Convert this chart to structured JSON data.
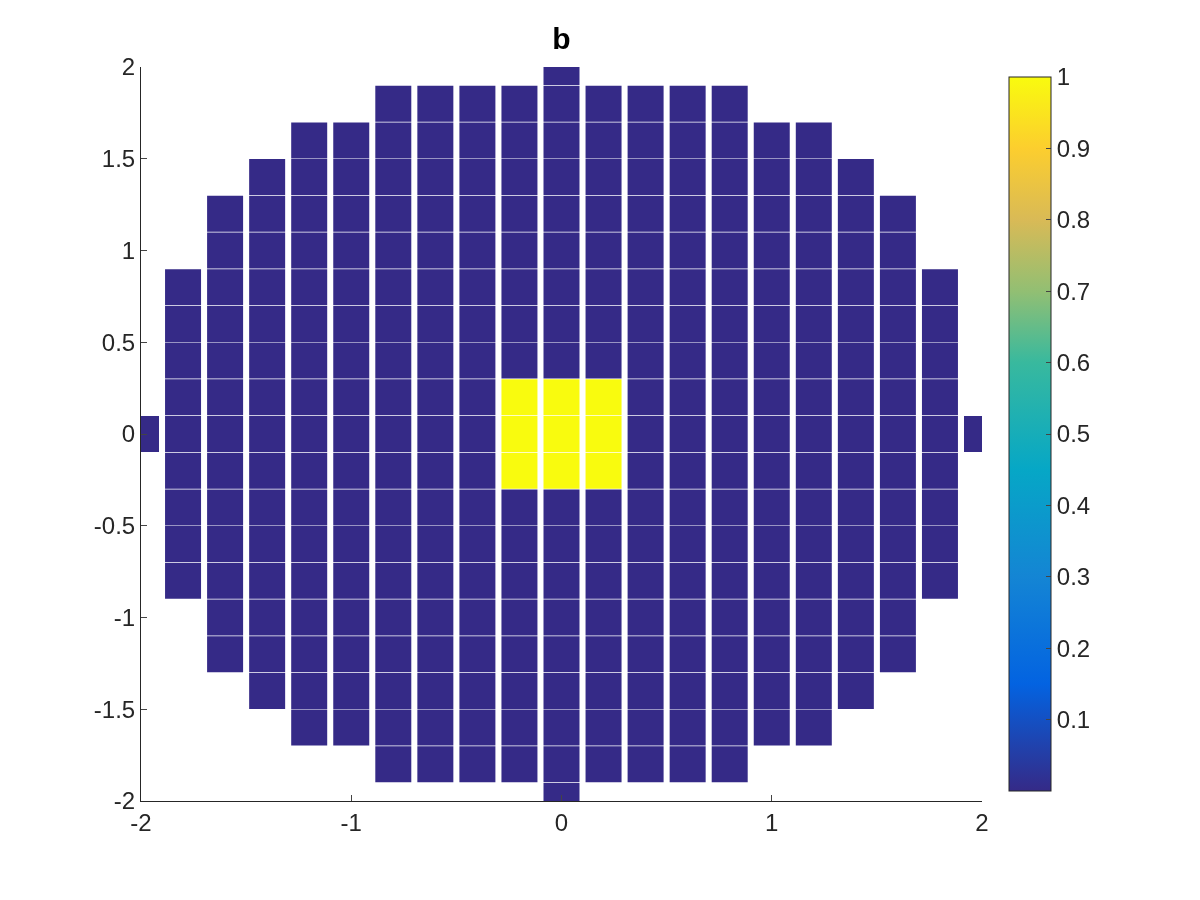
{
  "chart_data": {
    "type": "scatter",
    "title": "b",
    "marker": "square",
    "x": [
      0,
      -0.8,
      -0.6,
      -0.4,
      -0.2,
      0,
      0.2,
      0.4,
      0.6,
      0.8,
      -1.2,
      -1,
      -0.8,
      -0.6,
      -0.4,
      -0.2,
      0,
      0.2,
      0.4,
      0.6,
      0.8,
      1,
      1.2,
      -1.4,
      -1.2,
      -1,
      -0.8,
      -0.6,
      -0.4,
      -0.2,
      0,
      0.2,
      0.4,
      0.6,
      0.8,
      1,
      1.2,
      1.4,
      -1.6,
      -1.4,
      -1.2,
      -1,
      -0.8,
      -0.6,
      -0.4,
      -0.2,
      0,
      0.2,
      0.4,
      0.6,
      0.8,
      1,
      1.2,
      1.4,
      1.6,
      -1.6,
      -1.4,
      -1.2,
      -1,
      -0.8,
      -0.6,
      -0.4,
      -0.2,
      0,
      0.2,
      0.4,
      0.6,
      0.8,
      1,
      1.2,
      1.4,
      1.6,
      -1.8,
      -1.6,
      -1.4,
      -1.2,
      -1,
      -0.8,
      -0.6,
      -0.4,
      -0.2,
      0,
      0.2,
      0.4,
      0.6,
      0.8,
      1,
      1.2,
      1.4,
      1.6,
      1.8,
      -1.8,
      -1.6,
      -1.4,
      -1.2,
      -1,
      -0.8,
      -0.6,
      -0.4,
      -0.2,
      0,
      0.2,
      0.4,
      0.6,
      0.8,
      1,
      1.2,
      1.4,
      1.6,
      1.8,
      -1.8,
      -1.6,
      -1.4,
      -1.2,
      -1,
      -0.8,
      -0.6,
      -0.4,
      -0.2,
      0,
      0.2,
      0.4,
      0.6,
      0.8,
      1,
      1.2,
      1.4,
      1.6,
      1.8,
      -1.8,
      -1.6,
      -1.4,
      -1.2,
      -1,
      -0.8,
      -0.6,
      -0.4,
      -0.2,
      0,
      0.2,
      0.4,
      0.6,
      0.8,
      1,
      1.2,
      1.4,
      1.6,
      1.8,
      -2,
      -1.8,
      -1.6,
      -1.4,
      -1.2,
      -1,
      -0.8,
      -0.6,
      -0.4,
      -0.2,
      0,
      0.2,
      0.4,
      0.6,
      0.8,
      1,
      1.2,
      1.4,
      1.6,
      1.8,
      2,
      -1.8,
      -1.6,
      -1.4,
      -1.2,
      -1,
      -0.8,
      -0.6,
      -0.4,
      -0.2,
      0,
      0.2,
      0.4,
      0.6,
      0.8,
      1,
      1.2,
      1.4,
      1.6,
      1.8,
      -1.8,
      -1.6,
      -1.4,
      -1.2,
      -1,
      -0.8,
      -0.6,
      -0.4,
      -0.2,
      0,
      0.2,
      0.4,
      0.6,
      0.8,
      1,
      1.2,
      1.4,
      1.6,
      1.8,
      -1.8,
      -1.6,
      -1.4,
      -1.2,
      -1,
      -0.8,
      -0.6,
      -0.4,
      -0.2,
      0,
      0.2,
      0.4,
      0.6,
      0.8,
      1,
      1.2,
      1.4,
      1.6,
      1.8,
      -1.8,
      -1.6,
      -1.4,
      -1.2,
      -1,
      -0.8,
      -0.6,
      -0.4,
      -0.2,
      0,
      0.2,
      0.4,
      0.6,
      0.8,
      1,
      1.2,
      1.4,
      1.6,
      1.8,
      -1.6,
      -1.4,
      -1.2,
      -1,
      -0.8,
      -0.6,
      -0.4,
      -0.2,
      0,
      0.2,
      0.4,
      0.6,
      0.8,
      1,
      1.2,
      1.4,
      1.6,
      -1.6,
      -1.4,
      -1.2,
      -1,
      -0.8,
      -0.6,
      -0.4,
      -0.2,
      0,
      0.2,
      0.4,
      0.6,
      0.8,
      1,
      1.2,
      1.4,
      1.6,
      -1.4,
      -1.2,
      -1,
      -0.8,
      -0.6,
      -0.4,
      -0.2,
      0,
      0.2,
      0.4,
      0.6,
      0.8,
      1,
      1.2,
      1.4,
      -1.2,
      -1,
      -0.8,
      -0.6,
      -0.4,
      -0.2,
      0,
      0.2,
      0.4,
      0.6,
      0.8,
      1,
      1.2,
      -0.8,
      -0.6,
      -0.4,
      -0.2,
      0,
      0.2,
      0.4,
      0.6,
      0.8,
      0
    ],
    "values": [
      2,
      1.8,
      1.8,
      1.8,
      1.8,
      1.8,
      1.8,
      1.8,
      1.8,
      1.8,
      1.6,
      1.6,
      1.6,
      1.6,
      1.6,
      1.6,
      1.6,
      1.6,
      1.6,
      1.6,
      1.6,
      1.6,
      1.6,
      1.4,
      1.4,
      1.4,
      1.4,
      1.4,
      1.4,
      1.4,
      1.4,
      1.4,
      1.4,
      1.4,
      1.4,
      1.4,
      1.4,
      1.4,
      1.2,
      1.2,
      1.2,
      1.2,
      1.2,
      1.2,
      1.2,
      1.2,
      1.2,
      1.2,
      1.2,
      1.2,
      1.2,
      1.2,
      1.2,
      1.2,
      1.2,
      1,
      1,
      1,
      1,
      1,
      1,
      1,
      1,
      1,
      1,
      1,
      1,
      1,
      1,
      1,
      1,
      1,
      0.8,
      0.8,
      0.8,
      0.8,
      0.8,
      0.8,
      0.8,
      0.8,
      0.8,
      0.8,
      0.8,
      0.8,
      0.8,
      0.8,
      0.8,
      0.8,
      0.8,
      0.8,
      0.8,
      0.6,
      0.6,
      0.6,
      0.6,
      0.6,
      0.6,
      0.6,
      0.6,
      0.6,
      0.6,
      0.6,
      0.6,
      0.6,
      0.6,
      0.6,
      0.6,
      0.6,
      0.6,
      0.6,
      0.4,
      0.4,
      0.4,
      0.4,
      0.4,
      0.4,
      0.4,
      0.4,
      0.4,
      0.4,
      0.4,
      0.4,
      0.4,
      0.4,
      0.4,
      0.4,
      0.4,
      0.4,
      0.4,
      0.2,
      0.2,
      0.2,
      0.2,
      0.2,
      0.2,
      0.2,
      0.2,
      0.2,
      0.2,
      0.2,
      0.2,
      0.2,
      0.2,
      0.2,
      0.2,
      0.2,
      0.2,
      0.2,
      0,
      0,
      0,
      0,
      0,
      0,
      0,
      0,
      0,
      0,
      0,
      0,
      0,
      0,
      0,
      0,
      0,
      0,
      0,
      0,
      0,
      -0.2,
      -0.2,
      -0.2,
      -0.2,
      -0.2,
      -0.2,
      -0.2,
      -0.2,
      -0.2,
      -0.2,
      -0.2,
      -0.2,
      -0.2,
      -0.2,
      -0.2,
      -0.2,
      -0.2,
      -0.2,
      -0.2,
      -0.4,
      -0.4,
      -0.4,
      -0.4,
      -0.4,
      -0.4,
      -0.4,
      -0.4,
      -0.4,
      -0.4,
      -0.4,
      -0.4,
      -0.4,
      -0.4,
      -0.4,
      -0.4,
      -0.4,
      -0.4,
      -0.4,
      -0.6,
      -0.6,
      -0.6,
      -0.6,
      -0.6,
      -0.6,
      -0.6,
      -0.6,
      -0.6,
      -0.6,
      -0.6,
      -0.6,
      -0.6,
      -0.6,
      -0.6,
      -0.6,
      -0.6,
      -0.6,
      -0.6,
      -0.8,
      -0.8,
      -0.8,
      -0.8,
      -0.8,
      -0.8,
      -0.8,
      -0.8,
      -0.8,
      -0.8,
      -0.8,
      -0.8,
      -0.8,
      -0.8,
      -0.8,
      -0.8,
      -0.8,
      -0.8,
      -0.8,
      -1,
      -1,
      -1,
      -1,
      -1,
      -1,
      -1,
      -1,
      -1,
      -1,
      -1,
      -1,
      -1,
      -1,
      -1,
      -1,
      -1,
      -1.2,
      -1.2,
      -1.2,
      -1.2,
      -1.2,
      -1.2,
      -1.2,
      -1.2,
      -1.2,
      -1.2,
      -1.2,
      -1.2,
      -1.2,
      -1.2,
      -1.2,
      -1.2,
      -1.2,
      -1.4,
      -1.4,
      -1.4,
      -1.4,
      -1.4,
      -1.4,
      -1.4,
      -1.4,
      -1.4,
      -1.4,
      -1.4,
      -1.4,
      -1.4,
      -1.4,
      -1.4,
      -1.6,
      -1.6,
      -1.6,
      -1.6,
      -1.6,
      -1.6,
      -1.6,
      -1.6,
      -1.6,
      -1.6,
      -1.6,
      -1.6,
      -1.6,
      -1.8,
      -1.8,
      -1.8,
      -1.8,
      -1.8,
      -1.8,
      -1.8,
      -1.8,
      -1.8,
      -2
    ],
    "cvalues": [
      0,
      0,
      0,
      0,
      0,
      0,
      0,
      0,
      0,
      0,
      0,
      0,
      0,
      0,
      0,
      0,
      0,
      0,
      0,
      0,
      0,
      0,
      0,
      0,
      0,
      0,
      0,
      0,
      0,
      0,
      0,
      0,
      0,
      0,
      0,
      0,
      0,
      0,
      0,
      0,
      0,
      0,
      0,
      0,
      0,
      0,
      0,
      0,
      0,
      0,
      0,
      0,
      0,
      0,
      0,
      0,
      0,
      0,
      0,
      0,
      0,
      0,
      0,
      0,
      0,
      0,
      0,
      0,
      0,
      0,
      0,
      0,
      0,
      0,
      0,
      0,
      0,
      0,
      0,
      0,
      0,
      0,
      0,
      0,
      0,
      0,
      0,
      0,
      0,
      0,
      0,
      0,
      0,
      0,
      0,
      0,
      0,
      0,
      0,
      0,
      0,
      0,
      0,
      0,
      0,
      0,
      0,
      0,
      0,
      0,
      0,
      0,
      0,
      0,
      0,
      0,
      0,
      0,
      0,
      0,
      0,
      0,
      0,
      0,
      0,
      0,
      0,
      0,
      0,
      0,
      0,
      0,
      0,
      0,
      0,
      0,
      0,
      1,
      1,
      1,
      0,
      0,
      0,
      0,
      0,
      0,
      0,
      0,
      0,
      0,
      0,
      0,
      0,
      0,
      0,
      0,
      0,
      1,
      1,
      1,
      0,
      0,
      0,
      0,
      0,
      0,
      0,
      0,
      0,
      0,
      0,
      0,
      0,
      0,
      0,
      0,
      0,
      1,
      1,
      1,
      0,
      0,
      0,
      0,
      0,
      0,
      0,
      0,
      0,
      0,
      0,
      0,
      0,
      0,
      0,
      0,
      0,
      0,
      0,
      0,
      0,
      0,
      0,
      0,
      0,
      0,
      0,
      0,
      0,
      0,
      0,
      0,
      0,
      0,
      0,
      0,
      0,
      0,
      0,
      0,
      0,
      0,
      0,
      0,
      0,
      0,
      0,
      0,
      0,
      0,
      0,
      0,
      0,
      0,
      0,
      0,
      0,
      0,
      0,
      0,
      0,
      0,
      0,
      0,
      0,
      0,
      0,
      0,
      0,
      0,
      0,
      0,
      0,
      0,
      0,
      0,
      0,
      0,
      0,
      0,
      0,
      0,
      0,
      0,
      0,
      0,
      0,
      0,
      0,
      0,
      0,
      0,
      0,
      0,
      0,
      0,
      0,
      0,
      0,
      0,
      0,
      0,
      0,
      0,
      0,
      0,
      0,
      0,
      0,
      0,
      0,
      0,
      0,
      0,
      0,
      0,
      0,
      0,
      0,
      0,
      0,
      0,
      0,
      0,
      0,
      0,
      0,
      0,
      0,
      0,
      0,
      0,
      0,
      0,
      0,
      0,
      0
    ],
    "xlim": [
      -2,
      2
    ],
    "xticks": [
      -2,
      -1,
      0,
      1,
      2
    ],
    "ylim": [
      -2,
      2
    ],
    "yticks": [
      -2,
      -1.5,
      -1,
      -0.5,
      0,
      0.5,
      1,
      1.5,
      2
    ],
    "clim": [
      0,
      1
    ],
    "cticks": [
      0.1,
      0.2,
      0.3,
      0.4,
      0.5,
      0.6,
      0.7,
      0.8,
      0.9,
      1
    ]
  }
}
